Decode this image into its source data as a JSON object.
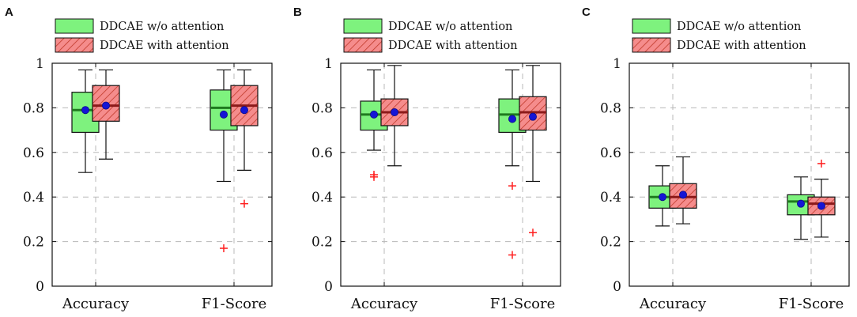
{
  "legend": [
    "DDCAE w/o attention",
    "DDCAE with attention"
  ],
  "colors": {
    "series_a_fill": "#7ef27e",
    "series_b_fill": "#f58c8c",
    "series_b_hatch": "#c0392b",
    "series_a_median": "#1f7a1f",
    "series_b_median": "#8b1a1a",
    "mean": "#1515d6",
    "outlier": "#ff2020",
    "grid": "#b8b8b8"
  },
  "chart_data": [
    {
      "type": "boxplot",
      "panel": "A",
      "categories": [
        "Accuracy",
        "F1-Score"
      ],
      "yticks": [
        "0",
        "0.2",
        "0.4",
        "0.6",
        "0.8",
        "1"
      ],
      "ylim": [
        0,
        1
      ],
      "grid": true,
      "legend_position": "top",
      "series": [
        {
          "name": "DDCAE w/o attention",
          "boxes": [
            {
              "whisker_low": 0.51,
              "q1": 0.69,
              "median": 0.79,
              "q3": 0.87,
              "whisker_high": 0.97,
              "mean": 0.79,
              "outliers": []
            },
            {
              "whisker_low": 0.47,
              "q1": 0.7,
              "median": 0.8,
              "q3": 0.88,
              "whisker_high": 0.97,
              "mean": 0.77,
              "outliers": [
                0.17
              ]
            }
          ]
        },
        {
          "name": "DDCAE with attention",
          "boxes": [
            {
              "whisker_low": 0.57,
              "q1": 0.74,
              "median": 0.81,
              "q3": 0.9,
              "whisker_high": 0.97,
              "mean": 0.81,
              "outliers": []
            },
            {
              "whisker_low": 0.52,
              "q1": 0.72,
              "median": 0.81,
              "q3": 0.9,
              "whisker_high": 0.97,
              "mean": 0.79,
              "outliers": [
                0.37
              ]
            }
          ]
        }
      ]
    },
    {
      "type": "boxplot",
      "panel": "B",
      "categories": [
        "Accuracy",
        "F1-Score"
      ],
      "yticks": [
        "0",
        "0.2",
        "0.4",
        "0.6",
        "0.8",
        "1"
      ],
      "ylim": [
        0,
        1
      ],
      "grid": true,
      "legend_position": "top",
      "series": [
        {
          "name": "DDCAE w/o attention",
          "boxes": [
            {
              "whisker_low": 0.61,
              "q1": 0.7,
              "median": 0.77,
              "q3": 0.83,
              "whisker_high": 0.97,
              "mean": 0.77,
              "outliers": [
                0.49,
                0.5
              ]
            },
            {
              "whisker_low": 0.54,
              "q1": 0.69,
              "median": 0.77,
              "q3": 0.84,
              "whisker_high": 0.97,
              "mean": 0.75,
              "outliers": [
                0.45,
                0.14
              ]
            }
          ]
        },
        {
          "name": "DDCAE with attention",
          "boxes": [
            {
              "whisker_low": 0.54,
              "q1": 0.72,
              "median": 0.78,
              "q3": 0.84,
              "whisker_high": 0.99,
              "mean": 0.78,
              "outliers": []
            },
            {
              "whisker_low": 0.47,
              "q1": 0.7,
              "median": 0.78,
              "q3": 0.85,
              "whisker_high": 0.99,
              "mean": 0.76,
              "outliers": [
                0.24
              ]
            }
          ]
        }
      ]
    },
    {
      "type": "boxplot",
      "panel": "C",
      "categories": [
        "Accuracy",
        "F1-Score"
      ],
      "yticks": [
        "0",
        "0.2",
        "0.4",
        "0.6",
        "0.8",
        "1"
      ],
      "ylim": [
        0,
        1
      ],
      "grid": true,
      "legend_position": "top",
      "series": [
        {
          "name": "DDCAE w/o attention",
          "boxes": [
            {
              "whisker_low": 0.27,
              "q1": 0.35,
              "median": 0.4,
              "q3": 0.45,
              "whisker_high": 0.54,
              "mean": 0.4,
              "outliers": []
            },
            {
              "whisker_low": 0.21,
              "q1": 0.32,
              "median": 0.38,
              "q3": 0.41,
              "whisker_high": 0.49,
              "mean": 0.37,
              "outliers": []
            }
          ]
        },
        {
          "name": "DDCAE with attention",
          "boxes": [
            {
              "whisker_low": 0.28,
              "q1": 0.35,
              "median": 0.4,
              "q3": 0.46,
              "whisker_high": 0.58,
              "mean": 0.41,
              "outliers": []
            },
            {
              "whisker_low": 0.22,
              "q1": 0.32,
              "median": 0.37,
              "q3": 0.4,
              "whisker_high": 0.48,
              "mean": 0.36,
              "outliers": [
                0.55
              ]
            }
          ]
        }
      ]
    }
  ]
}
